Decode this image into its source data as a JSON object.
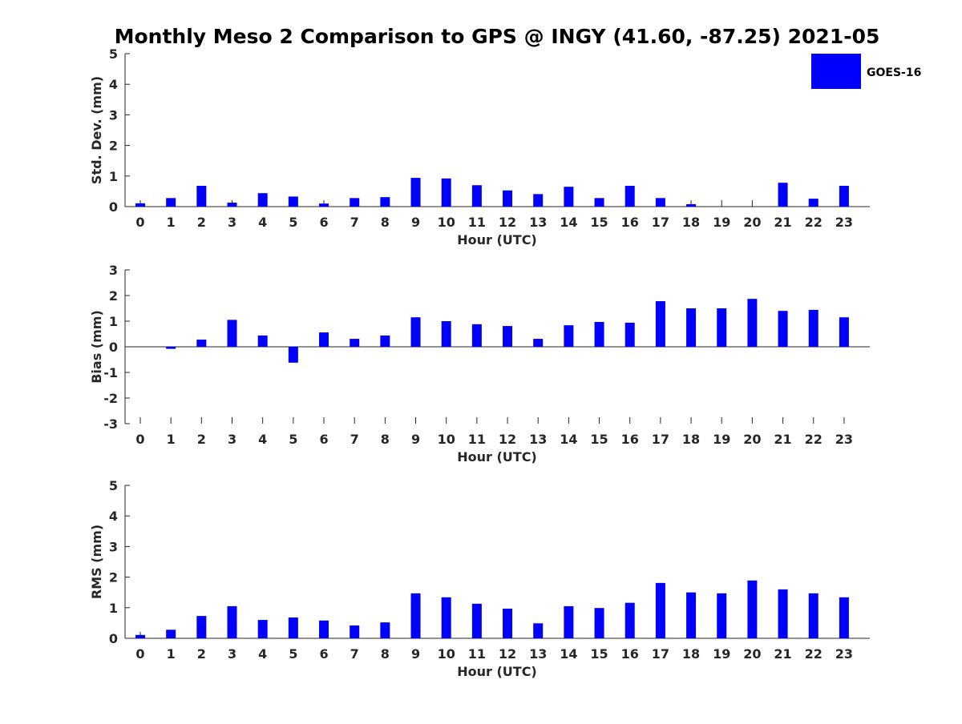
{
  "title": "Monthly Meso 2 Comparison to GPS @ INGY (41.60, -87.25) 2021-05",
  "legend": {
    "label": "GOES-16",
    "color": "#0000ff",
    "placement": "top-right"
  },
  "colors": {
    "bar": "#0000ff",
    "axis": "#262626",
    "background": "#ffffff"
  },
  "chart_data": [
    {
      "type": "bar",
      "xlabel": "Hour (UTC)",
      "ylabel": "Std. Dev. (mm)",
      "ylim": [
        0,
        5
      ],
      "yticks": [
        0,
        1,
        2,
        3,
        4,
        5
      ],
      "zero_line": false,
      "categories": [
        "0",
        "1",
        "2",
        "3",
        "4",
        "5",
        "6",
        "7",
        "8",
        "9",
        "10",
        "11",
        "12",
        "13",
        "14",
        "15",
        "16",
        "17",
        "18",
        "19",
        "20",
        "21",
        "22",
        "23"
      ],
      "series": [
        {
          "name": "GOES-16",
          "values": [
            0.11,
            0.28,
            0.68,
            0.13,
            0.44,
            0.33,
            0.1,
            0.28,
            0.31,
            0.94,
            0.92,
            0.7,
            0.53,
            0.41,
            0.65,
            0.28,
            0.68,
            0.28,
            0.08,
            0,
            0,
            0.78,
            0.26,
            0.68
          ]
        }
      ]
    },
    {
      "type": "bar",
      "xlabel": "Hour (UTC)",
      "ylabel": "Bias (mm)",
      "ylim": [
        -3,
        3
      ],
      "yticks": [
        -3,
        -2,
        -1,
        0,
        1,
        2,
        3
      ],
      "zero_line": true,
      "categories": [
        "0",
        "1",
        "2",
        "3",
        "4",
        "5",
        "6",
        "7",
        "8",
        "9",
        "10",
        "11",
        "12",
        "13",
        "14",
        "15",
        "16",
        "17",
        "18",
        "19",
        "20",
        "21",
        "22",
        "23"
      ],
      "series": [
        {
          "name": "GOES-16",
          "values": [
            0.0,
            -0.08,
            0.28,
            1.05,
            0.44,
            -0.62,
            0.56,
            0.31,
            0.44,
            1.15,
            1.0,
            0.88,
            0.81,
            0.31,
            0.84,
            0.97,
            0.94,
            1.78,
            1.5,
            1.5,
            1.87,
            1.4,
            1.44,
            1.15
          ]
        }
      ]
    },
    {
      "type": "bar",
      "xlabel": "Hour (UTC)",
      "ylabel": "RMS (mm)",
      "ylim": [
        0,
        5
      ],
      "yticks": [
        0,
        1,
        2,
        3,
        4,
        5
      ],
      "zero_line": false,
      "categories": [
        "0",
        "1",
        "2",
        "3",
        "4",
        "5",
        "6",
        "7",
        "8",
        "9",
        "10",
        "11",
        "12",
        "13",
        "14",
        "15",
        "16",
        "17",
        "18",
        "19",
        "20",
        "21",
        "22",
        "23"
      ],
      "series": [
        {
          "name": "GOES-16",
          "values": [
            0.11,
            0.28,
            0.73,
            1.05,
            0.6,
            0.68,
            0.58,
            0.42,
            0.52,
            1.47,
            1.34,
            1.13,
            0.97,
            0.49,
            1.05,
            0.99,
            1.16,
            1.81,
            1.5,
            1.47,
            1.89,
            1.6,
            1.47,
            1.34
          ]
        }
      ]
    }
  ]
}
